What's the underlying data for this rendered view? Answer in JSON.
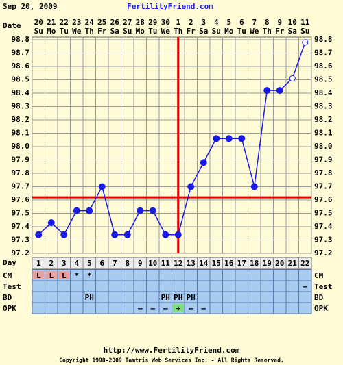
{
  "chart_data": {
    "type": "line",
    "title": "Sep 20, 2009",
    "site": "FertilityFriend.com",
    "date_label": "Date",
    "day_label": "Day",
    "dates": [
      "20",
      "21",
      "22",
      "23",
      "24",
      "25",
      "26",
      "27",
      "28",
      "29",
      "30",
      "1",
      "2",
      "3",
      "4",
      "5",
      "6",
      "7",
      "8",
      "9",
      "10",
      "11"
    ],
    "weekdays": [
      "Su",
      "Mo",
      "Tu",
      "We",
      "Th",
      "Fr",
      "Sa",
      "Su",
      "Mo",
      "Tu",
      "We",
      "Th",
      "Fr",
      "Sa",
      "Su",
      "Mo",
      "Tu",
      "We",
      "Th",
      "Fr",
      "Sa",
      "Su"
    ],
    "categories": [
      "1",
      "2",
      "3",
      "4",
      "5",
      "6",
      "7",
      "8",
      "9",
      "10",
      "11",
      "12",
      "13",
      "14",
      "15",
      "16",
      "17",
      "18",
      "19",
      "20",
      "21",
      "22"
    ],
    "values": [
      97.34,
      97.43,
      97.34,
      97.52,
      97.52,
      97.7,
      97.34,
      97.34,
      97.52,
      97.52,
      97.34,
      97.34,
      97.7,
      97.88,
      98.06,
      98.06,
      98.06,
      97.7,
      98.42,
      98.42,
      98.51,
      98.78
    ],
    "markers": [
      "filled",
      "filled",
      "filled",
      "filled",
      "filled",
      "filled",
      "filled",
      "filled",
      "filled",
      "filled",
      "filled",
      "filled",
      "filled",
      "filled",
      "filled",
      "filled",
      "filled",
      "filled",
      "filled",
      "filled",
      "open",
      "open"
    ],
    "color": "#1a1ae6",
    "coverline": 97.62,
    "ovulation_day": 12,
    "line_color": "#e00000",
    "ylim": [
      97.2,
      98.8
    ],
    "yticks": [
      97.2,
      97.3,
      97.4,
      97.5,
      97.6,
      97.7,
      97.8,
      97.9,
      {
        "value": 98.0,
        "label": "98.0"
      },
      98.1,
      98.2,
      98.3,
      98.4,
      98.5,
      98.6,
      98.7,
      98.8
    ],
    "grid": true,
    "rows": [
      {
        "label": "CM",
        "values": [
          "L",
          "L",
          "L",
          "*",
          "*",
          null,
          null,
          null,
          null,
          null,
          null,
          null,
          null,
          null,
          null,
          null,
          null,
          null,
          null,
          null,
          null,
          null
        ],
        "colors": [
          "#e8a0a0",
          "#e8a0a0",
          "#e8a0a0",
          null,
          null,
          null,
          null,
          null,
          null,
          null,
          null,
          null,
          null,
          null,
          null,
          null,
          null,
          null,
          null,
          null,
          null,
          null
        ]
      },
      {
        "label": "Test",
        "values": [
          null,
          null,
          null,
          null,
          null,
          null,
          null,
          null,
          null,
          null,
          null,
          null,
          null,
          null,
          null,
          null,
          null,
          null,
          null,
          null,
          null,
          "–"
        ],
        "colors": [
          null,
          null,
          null,
          null,
          null,
          null,
          null,
          null,
          null,
          null,
          null,
          null,
          null,
          null,
          null,
          null,
          null,
          null,
          null,
          null,
          null,
          null
        ]
      },
      {
        "label": "BD",
        "values": [
          null,
          null,
          null,
          null,
          "PH",
          null,
          null,
          null,
          null,
          null,
          "PH",
          "PH",
          "PH",
          null,
          null,
          null,
          null,
          null,
          null,
          null,
          null,
          null
        ],
        "colors": [
          null,
          null,
          null,
          null,
          null,
          null,
          null,
          null,
          null,
          null,
          null,
          null,
          null,
          null,
          null,
          null,
          null,
          null,
          null,
          null,
          null,
          null
        ]
      },
      {
        "label": "OPK",
        "values": [
          null,
          null,
          null,
          null,
          null,
          null,
          null,
          null,
          "–",
          "–",
          "–",
          "+",
          "–",
          "–",
          null,
          null,
          null,
          null,
          null,
          null,
          null,
          null
        ],
        "colors": [
          null,
          null,
          null,
          null,
          null,
          null,
          null,
          null,
          null,
          null,
          null,
          "#80e080",
          null,
          null,
          null,
          null,
          null,
          null,
          null,
          null,
          null,
          null
        ]
      }
    ],
    "url": "http://www.FertilityFriend.com",
    "copyright": "Copyright 1998-2009 Tamtris Web Services Inc. - All Rights Reserved."
  }
}
